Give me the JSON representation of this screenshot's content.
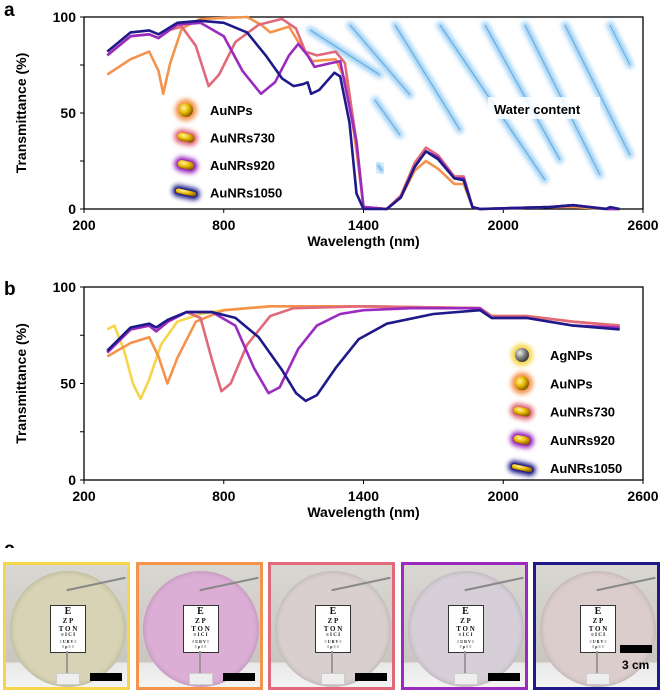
{
  "panel_labels": {
    "a": "a",
    "b": "b",
    "c": "c"
  },
  "chart_data": [
    {
      "type": "line",
      "xlabel": "Wavelength (nm)",
      "ylabel": "Transmittance (%)",
      "xlim": [
        200,
        2600
      ],
      "ylim": [
        0,
        100
      ],
      "xticks": [
        200,
        800,
        1400,
        2000,
        2600
      ],
      "yticks": [
        0,
        50,
        100
      ],
      "grid": false,
      "legend_placement": "center-left",
      "annotation": "Water content",
      "series": [
        {
          "name": "AuNPs",
          "color": "#f4944c",
          "points": [
            [
              300,
              70
            ],
            [
              400,
              78
            ],
            [
              480,
              82
            ],
            [
              520,
              72
            ],
            [
              540,
              60
            ],
            [
              570,
              76
            ],
            [
              620,
              94
            ],
            [
              700,
              99
            ],
            [
              900,
              100
            ],
            [
              960,
              96
            ],
            [
              1000,
              92
            ],
            [
              1080,
              95
            ],
            [
              1130,
              85
            ],
            [
              1180,
              77
            ],
            [
              1280,
              78
            ],
            [
              1330,
              65
            ],
            [
              1370,
              30
            ],
            [
              1400,
              1
            ],
            [
              1500,
              0
            ],
            [
              1560,
              6
            ],
            [
              1620,
              20
            ],
            [
              1668,
              25
            ],
            [
              1720,
              21
            ],
            [
              1790,
              13
            ],
            [
              1830,
              13
            ],
            [
              1868,
              1
            ],
            [
              1900,
              0
            ],
            [
              2200,
              1
            ],
            [
              2300,
              1
            ],
            [
              2450,
              0
            ],
            [
              2500,
              0
            ]
          ]
        },
        {
          "name": "AuNRs730",
          "color": "#e06a7a",
          "points": [
            [
              300,
              80
            ],
            [
              400,
              90
            ],
            [
              480,
              91
            ],
            [
              520,
              89
            ],
            [
              560,
              93
            ],
            [
              620,
              95
            ],
            [
              680,
              85
            ],
            [
              735,
              64
            ],
            [
              780,
              70
            ],
            [
              850,
              87
            ],
            [
              950,
              96
            ],
            [
              1050,
              99
            ],
            [
              1110,
              94
            ],
            [
              1150,
              82
            ],
            [
              1200,
              80
            ],
            [
              1280,
              82
            ],
            [
              1320,
              76
            ],
            [
              1370,
              35
            ],
            [
              1400,
              1
            ],
            [
              1500,
              0
            ],
            [
              1560,
              7
            ],
            [
              1620,
              24
            ],
            [
              1668,
              32
            ],
            [
              1720,
              28
            ],
            [
              1790,
              17
            ],
            [
              1830,
              17
            ],
            [
              1868,
              1
            ],
            [
              1900,
              0
            ],
            [
              2200,
              1
            ],
            [
              2300,
              2
            ],
            [
              2450,
              0
            ],
            [
              2500,
              0
            ]
          ]
        },
        {
          "name": "AuNRs920",
          "color": "#9b2bbf",
          "points": [
            [
              300,
              80
            ],
            [
              400,
              90
            ],
            [
              480,
              91
            ],
            [
              520,
              89
            ],
            [
              600,
              96
            ],
            [
              700,
              97
            ],
            [
              800,
              90
            ],
            [
              880,
              72
            ],
            [
              960,
              60
            ],
            [
              1020,
              66
            ],
            [
              1080,
              80
            ],
            [
              1120,
              86
            ],
            [
              1160,
              80
            ],
            [
              1190,
              74
            ],
            [
              1260,
              76
            ],
            [
              1300,
              77
            ],
            [
              1370,
              35
            ],
            [
              1400,
              1
            ],
            [
              1500,
              0
            ],
            [
              1560,
              6
            ],
            [
              1620,
              22
            ],
            [
              1668,
              30
            ],
            [
              1720,
              27
            ],
            [
              1790,
              16
            ],
            [
              1830,
              16
            ],
            [
              1868,
              1
            ],
            [
              1900,
              0
            ],
            [
              2200,
              1
            ],
            [
              2300,
              2
            ],
            [
              2450,
              0
            ],
            [
              2500,
              0
            ]
          ]
        },
        {
          "name": "AuNRs1050",
          "color": "#1f1a8a",
          "points": [
            [
              300,
              82
            ],
            [
              400,
              92
            ],
            [
              480,
              93
            ],
            [
              520,
              91
            ],
            [
              600,
              97
            ],
            [
              700,
              98
            ],
            [
              800,
              97
            ],
            [
              900,
              92
            ],
            [
              980,
              80
            ],
            [
              1050,
              68
            ],
            [
              1100,
              64
            ],
            [
              1140,
              65
            ],
            [
              1160,
              66
            ],
            [
              1175,
              60
            ],
            [
              1210,
              62
            ],
            [
              1275,
              71
            ],
            [
              1300,
              69
            ],
            [
              1340,
              45
            ],
            [
              1370,
              8
            ],
            [
              1400,
              0
            ],
            [
              1500,
              0
            ],
            [
              1560,
              6
            ],
            [
              1620,
              22
            ],
            [
              1668,
              30
            ],
            [
              1720,
              26
            ],
            [
              1790,
              16
            ],
            [
              1830,
              15
            ],
            [
              1868,
              1
            ],
            [
              1900,
              0
            ],
            [
              2200,
              1
            ],
            [
              2300,
              2
            ],
            [
              2440,
              0
            ],
            [
              2460,
              1
            ],
            [
              2500,
              0
            ]
          ]
        }
      ]
    },
    {
      "type": "line",
      "xlabel": "Wavelength (nm)",
      "ylabel": "Transmittance (%)",
      "xlim": [
        200,
        2600
      ],
      "ylim": [
        0,
        100
      ],
      "xticks": [
        200,
        800,
        1400,
        2000,
        2600
      ],
      "yticks": [
        0,
        50,
        100
      ],
      "grid": false,
      "legend_placement": "bottom-right",
      "series": [
        {
          "name": "AgNPs",
          "color": "#f7d54a",
          "points": [
            [
              300,
              78
            ],
            [
              330,
              80
            ],
            [
              370,
              68
            ],
            [
              410,
              50
            ],
            [
              443,
              42
            ],
            [
              480,
              52
            ],
            [
              530,
              70
            ],
            [
              600,
              82
            ],
            [
              700,
              86
            ],
            [
              800,
              88
            ],
            [
              1000,
              90
            ],
            [
              1400,
              90
            ],
            [
              1900,
              89
            ],
            [
              1950,
              85
            ],
            [
              2100,
              85
            ],
            [
              2300,
              82
            ],
            [
              2500,
              80
            ]
          ]
        },
        {
          "name": "AuNPs",
          "color": "#f4944c",
          "points": [
            [
              300,
              64
            ],
            [
              400,
              71
            ],
            [
              480,
              74
            ],
            [
              520,
              64
            ],
            [
              558,
              50
            ],
            [
              600,
              63
            ],
            [
              680,
              82
            ],
            [
              800,
              88
            ],
            [
              1000,
              90
            ],
            [
              1400,
              90
            ],
            [
              1900,
              89
            ],
            [
              1950,
              85
            ],
            [
              2100,
              85
            ],
            [
              2300,
              82
            ],
            [
              2500,
              80
            ]
          ]
        },
        {
          "name": "AuNRs730",
          "color": "#e06a7a",
          "points": [
            [
              300,
              66
            ],
            [
              400,
              78
            ],
            [
              480,
              80
            ],
            [
              510,
              77
            ],
            [
              560,
              82
            ],
            [
              640,
              87
            ],
            [
              700,
              84
            ],
            [
              750,
              62
            ],
            [
              790,
              46
            ],
            [
              830,
              50
            ],
            [
              900,
              70
            ],
            [
              1000,
              85
            ],
            [
              1100,
              89
            ],
            [
              1400,
              90
            ],
            [
              1900,
              89
            ],
            [
              1950,
              85
            ],
            [
              2100,
              85
            ],
            [
              2300,
              82
            ],
            [
              2500,
              80
            ]
          ]
        },
        {
          "name": "AuNRs920",
          "color": "#9b2bbf",
          "points": [
            [
              300,
              66
            ],
            [
              400,
              78
            ],
            [
              480,
              80
            ],
            [
              510,
              77
            ],
            [
              560,
              82
            ],
            [
              640,
              87
            ],
            [
              750,
              87
            ],
            [
              850,
              80
            ],
            [
              930,
              58
            ],
            [
              992,
              45
            ],
            [
              1040,
              48
            ],
            [
              1120,
              68
            ],
            [
              1200,
              80
            ],
            [
              1300,
              86
            ],
            [
              1400,
              88
            ],
            [
              1600,
              89
            ],
            [
              1900,
              89
            ],
            [
              1950,
              84
            ],
            [
              2100,
              84
            ],
            [
              2300,
              80
            ],
            [
              2500,
              79
            ]
          ]
        },
        {
          "name": "AuNRs1050",
          "color": "#1f1a8a",
          "points": [
            [
              300,
              67
            ],
            [
              400,
              79
            ],
            [
              480,
              81
            ],
            [
              510,
              79
            ],
            [
              560,
              83
            ],
            [
              640,
              87
            ],
            [
              750,
              87
            ],
            [
              850,
              84
            ],
            [
              950,
              74
            ],
            [
              1050,
              57
            ],
            [
              1110,
              45
            ],
            [
              1152,
              41
            ],
            [
              1200,
              44
            ],
            [
              1280,
              58
            ],
            [
              1380,
              73
            ],
            [
              1500,
              81
            ],
            [
              1700,
              86
            ],
            [
              1900,
              88
            ],
            [
              1950,
              84
            ],
            [
              2100,
              84
            ],
            [
              2300,
              80
            ],
            [
              2500,
              78
            ]
          ]
        }
      ]
    }
  ],
  "photos": {
    "border_colors": [
      "#f7d54a",
      "#f4944c",
      "#e06a7a",
      "#9b2bbf",
      "#1f1a8a"
    ],
    "disc_colors": [
      "#d7d3b4",
      "#dcaed6",
      "#d9cfcf",
      "#d7cfd8",
      "#dccdcd"
    ],
    "eye_chart": {
      "line1": "E",
      "line2": "Z P",
      "line3": "T O N",
      "line4": "≡ I C I",
      "line5": "≡ U R V ≡",
      "line6": "≡ p ≡ ≡"
    },
    "scale_label": "3 cm"
  }
}
